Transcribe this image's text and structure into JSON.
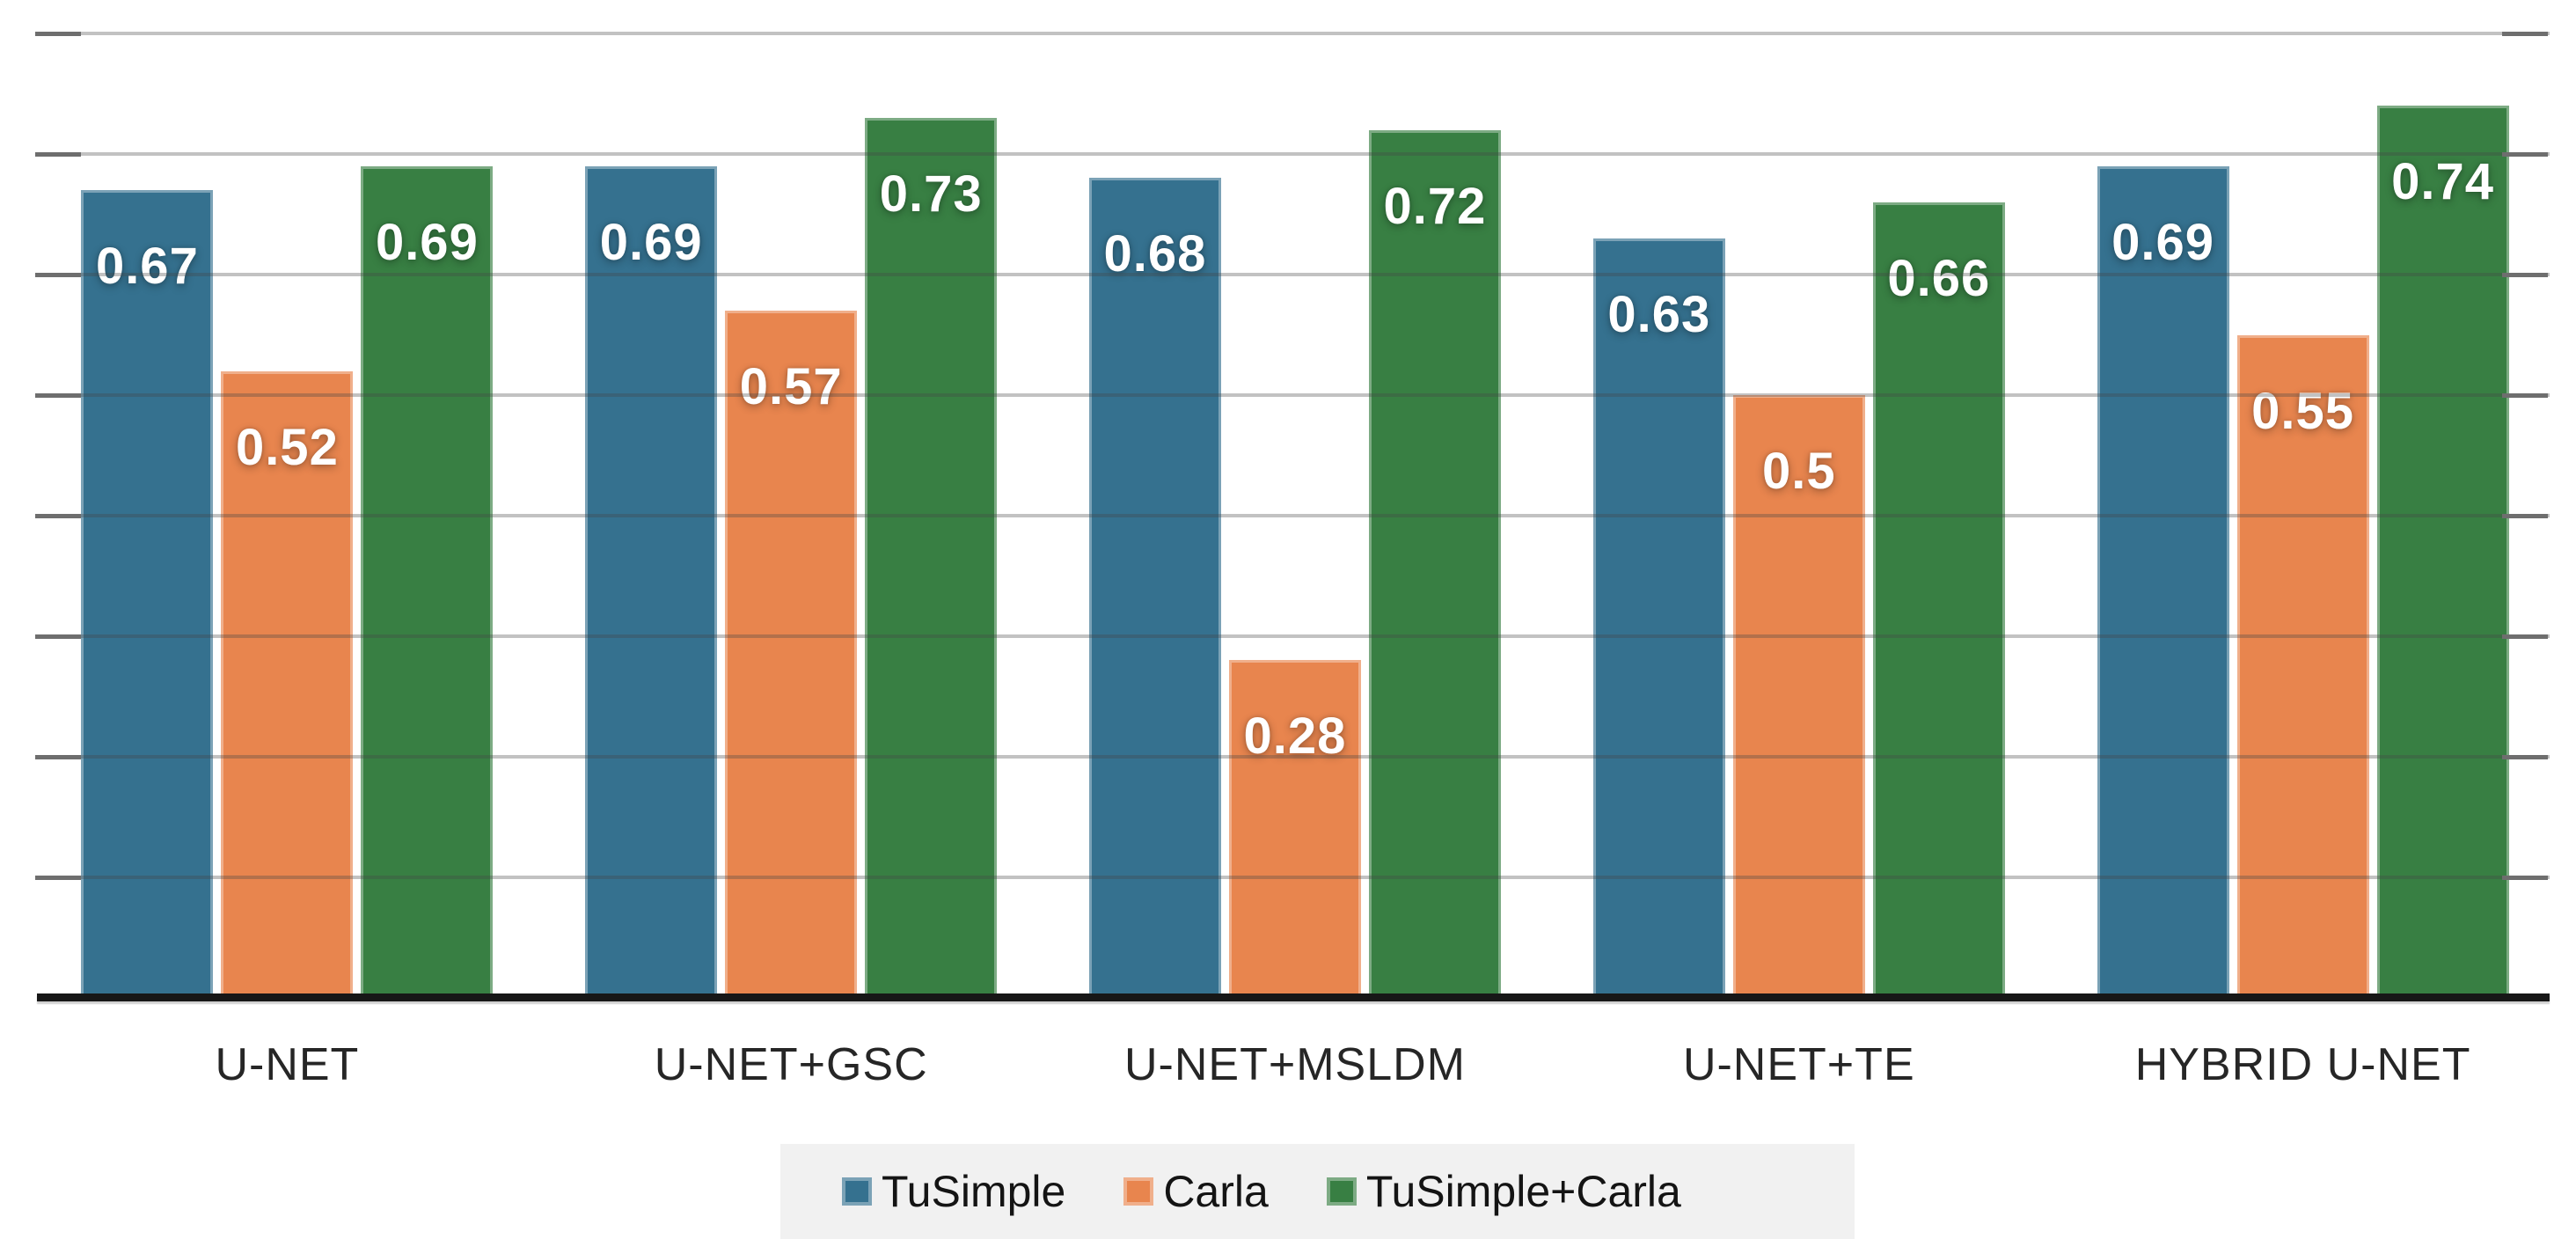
{
  "chart_data": {
    "type": "bar",
    "title": "",
    "xlabel": "",
    "ylabel": "",
    "categories": [
      "U-NET",
      "U-NET+GSC",
      "U-NET+MSLDM",
      "U-NET+TE",
      "HYBRID U-NET"
    ],
    "series": [
      {
        "name": "TuSimple",
        "color": "#35718f",
        "values": [
          0.67,
          0.69,
          0.68,
          0.63,
          0.69
        ]
      },
      {
        "name": "Carla",
        "color": "#e8854e",
        "values": [
          0.52,
          0.57,
          0.28,
          0.5,
          0.55
        ]
      },
      {
        "name": "TuSimple+Carla",
        "color": "#387f43",
        "values": [
          0.69,
          0.73,
          0.72,
          0.66,
          0.74
        ]
      }
    ],
    "data_labels": [
      [
        "0.67",
        "0.69",
        "0.68",
        "0.63",
        "0.69"
      ],
      [
        "0.52",
        "0.57",
        "0.28",
        "0.5",
        "0.55"
      ],
      [
        "0.69",
        "0.73",
        "0.72",
        "0.66",
        "0.74"
      ]
    ],
    "ylim": [
      0,
      0.82
    ],
    "gridline_values": [
      0.1,
      0.2,
      0.3,
      0.4,
      0.5,
      0.6,
      0.7,
      0.8
    ],
    "y_tick_labels_shown": false,
    "grid": "horizontal gridlines drawn over bars, tick dashes at both plot edges",
    "legend_position": "bottom-center",
    "legend_background": "#f1f1f1",
    "axis_line_color": "#171717",
    "gridline_color": "#c0c0c0",
    "tick_color": "#6e6e6e",
    "bar_value_label_color": "#ffffff",
    "category_label_color": "#262626"
  }
}
